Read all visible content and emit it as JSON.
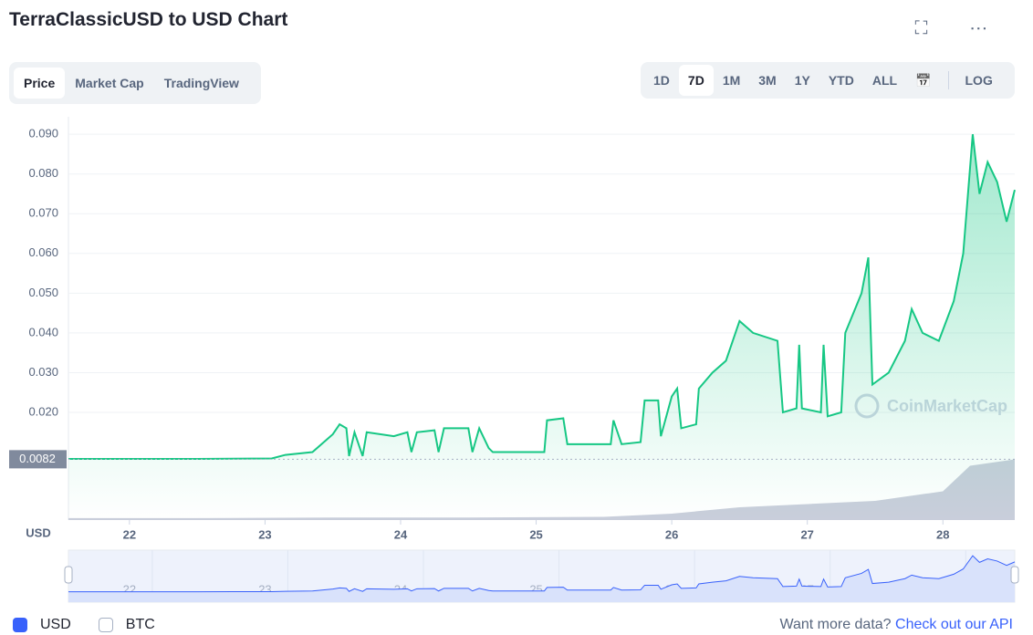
{
  "header": {
    "title": "TerraClassicUSD to USD Chart"
  },
  "tabs": [
    "Price",
    "Market Cap",
    "TradingView"
  ],
  "active_tab": 0,
  "ranges": [
    "1D",
    "7D",
    "1M",
    "3M",
    "1Y",
    "YTD",
    "ALL"
  ],
  "active_range": 1,
  "log_button": "LOG",
  "chart_data": {
    "type": "line",
    "y_axis_label": "USD",
    "watermark": "CoinMarketCap",
    "current_price": 0.0082,
    "current_price_label": "0.0082",
    "x": [
      21.55,
      22.5,
      23.05,
      23.15,
      23.35,
      23.5,
      23.55,
      23.6,
      23.62,
      23.66,
      23.72,
      23.75,
      23.95,
      24.05,
      24.08,
      24.12,
      24.25,
      24.28,
      24.32,
      24.5,
      24.53,
      24.58,
      24.65,
      24.68,
      25.06,
      25.08,
      25.2,
      25.23,
      25.55,
      25.57,
      25.63,
      25.77,
      25.8,
      25.9,
      25.92,
      26.0,
      26.04,
      26.07,
      26.18,
      26.2,
      26.3,
      26.4,
      26.5,
      26.6,
      26.78,
      26.82,
      26.92,
      26.94,
      26.96,
      27.1,
      27.12,
      27.15,
      27.25,
      27.28,
      27.4,
      27.45,
      27.48,
      27.6,
      27.72,
      27.77,
      27.85,
      27.97,
      28.08,
      28.15,
      28.22,
      28.27,
      28.33,
      28.4,
      28.47,
      28.53
    ],
    "series": [
      {
        "name": "Price",
        "color": "#16c784",
        "values": [
          0.0083,
          0.0083,
          0.0084,
          0.0093,
          0.01,
          0.0145,
          0.017,
          0.016,
          0.009,
          0.015,
          0.009,
          0.015,
          0.014,
          0.015,
          0.01,
          0.015,
          0.0155,
          0.01,
          0.016,
          0.016,
          0.01,
          0.016,
          0.011,
          0.01,
          0.01,
          0.018,
          0.0185,
          0.012,
          0.012,
          0.018,
          0.012,
          0.0125,
          0.023,
          0.023,
          0.014,
          0.024,
          0.026,
          0.016,
          0.017,
          0.026,
          0.03,
          0.033,
          0.043,
          0.04,
          0.038,
          0.02,
          0.021,
          0.037,
          0.021,
          0.02,
          0.037,
          0.019,
          0.02,
          0.04,
          0.05,
          0.059,
          0.027,
          0.03,
          0.038,
          0.046,
          0.04,
          0.038,
          0.048,
          0.06,
          0.09,
          0.075,
          0.083,
          0.078,
          0.068,
          0.076
        ]
      }
    ],
    "volume_x": [
      21.55,
      22.5,
      23.5,
      24.5,
      25.5,
      26.0,
      26.5,
      27.0,
      27.5,
      28.0,
      28.2,
      28.53
    ],
    "volume": {
      "name": "Volume",
      "color": "#c9cedb",
      "axis": "y2",
      "values": [
        3,
        3,
        4,
        4,
        5,
        10,
        20,
        25,
        30,
        45,
        85,
        95
      ]
    },
    "y2lim": [
      0,
      100
    ],
    "xlim": [
      21.55,
      28.53
    ],
    "xticks": [
      22,
      23,
      24,
      25,
      26,
      27,
      28
    ],
    "ylim": [
      -0.0071,
      0.0944
    ],
    "yticks": [
      {
        "value": 0.02,
        "label": "0.020"
      },
      {
        "value": 0.03,
        "label": "0.030"
      },
      {
        "value": 0.04,
        "label": "0.040"
      },
      {
        "value": 0.05,
        "label": "0.050"
      },
      {
        "value": 0.06,
        "label": "0.060"
      },
      {
        "value": 0.07,
        "label": "0.070"
      },
      {
        "value": 0.08,
        "label": "0.080"
      },
      {
        "value": 0.09,
        "label": "0.090"
      }
    ],
    "grid": true
  },
  "footer": {
    "currencies": [
      "USD",
      "BTC"
    ],
    "checked": [
      true,
      false
    ],
    "prompt": "Want more data?",
    "link": "Check out our API"
  }
}
